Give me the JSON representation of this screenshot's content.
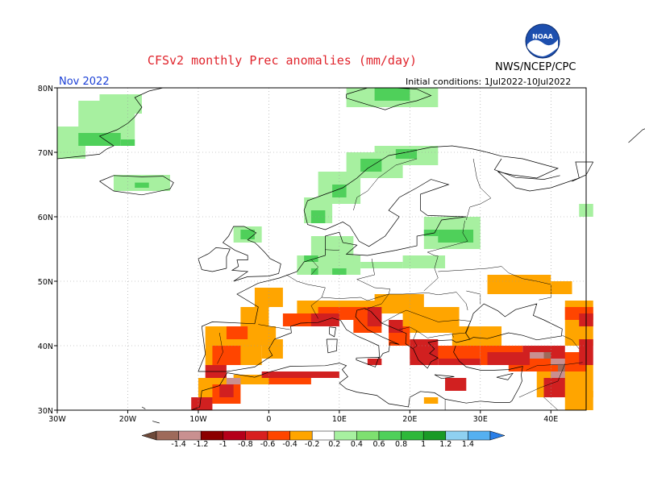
{
  "header": {
    "title": "CFSv2 monthly Prec anomalies (mm/day)",
    "agency": "NWS/NCEP/CPC",
    "month": "Nov 2022",
    "initial_conditions": "Initial conditions: 1Jul2022-10Jul2022",
    "logo_text": "NOAA"
  },
  "map": {
    "lon_range": [
      -30,
      45
    ],
    "lat_range": [
      30,
      80
    ],
    "lat_labels": [
      "30N",
      "40N",
      "50N",
      "60N",
      "70N",
      "80N"
    ],
    "lon_labels": [
      "30W",
      "20W",
      "10W",
      "0",
      "10E",
      "20E",
      "30E",
      "40E"
    ],
    "gridlines": "dotted",
    "regions": [
      {
        "id": "greenland-east",
        "color": "#a7f0a0",
        "cells": [
          [
            -30,
            69,
            -26,
            74
          ],
          [
            -27,
            72,
            -19,
            78
          ],
          [
            -24,
            76,
            -18,
            79
          ]
        ]
      },
      {
        "id": "greenland-coast",
        "color": "#4fd05a",
        "cells": [
          [
            -27,
            71,
            -21,
            73
          ],
          [
            -21,
            71,
            -19,
            72
          ]
        ]
      },
      {
        "id": "iceland",
        "color": "#a7f0a0",
        "cells": [
          [
            -22,
            64,
            -14,
            66.5
          ]
        ]
      },
      {
        "id": "iceland-dark",
        "color": "#4fd05a",
        "cells": [
          [
            -19,
            64.5,
            -17,
            65.3
          ]
        ]
      },
      {
        "id": "svalbard",
        "color": "#a7f0a0",
        "cells": [
          [
            11,
            77,
            24,
            80
          ]
        ]
      },
      {
        "id": "svalbard-dark",
        "color": "#4fd05a",
        "cells": [
          [
            15,
            78,
            20,
            80
          ]
        ]
      },
      {
        "id": "scandinavia-coast",
        "color": "#a7f0a0",
        "cells": [
          [
            5,
            59,
            9,
            63
          ],
          [
            7,
            62,
            13,
            67
          ],
          [
            11,
            66,
            19,
            70
          ],
          [
            15,
            68,
            24,
            71
          ]
        ]
      },
      {
        "id": "scandinavia-coast-dark",
        "color": "#4fd05a",
        "cells": [
          [
            6,
            59,
            8,
            61
          ],
          [
            9,
            63,
            11,
            65
          ],
          [
            13,
            67,
            16,
            69
          ],
          [
            18,
            69,
            21,
            70.5
          ]
        ]
      },
      {
        "id": "scotland",
        "color": "#a7f0a0",
        "cells": [
          [
            -5,
            56,
            -1,
            58.5
          ]
        ]
      },
      {
        "id": "scotland-dark",
        "color": "#4fd05a",
        "cells": [
          [
            -4,
            56.5,
            -2,
            58
          ]
        ]
      },
      {
        "id": "north-europe",
        "color": "#a7f0a0",
        "cells": [
          [
            4,
            51,
            13,
            54
          ],
          [
            6,
            53,
            12,
            57
          ],
          [
            13,
            52,
            19,
            53
          ],
          [
            19,
            52,
            25,
            54
          ],
          [
            22,
            55,
            30,
            60
          ],
          [
            24,
            57,
            28,
            58
          ]
        ]
      },
      {
        "id": "north-europe-dark",
        "color": "#4fd05a",
        "cells": [
          [
            5,
            53,
            7,
            54
          ],
          [
            6,
            51,
            7,
            52
          ],
          [
            9,
            51,
            11,
            52
          ],
          [
            24,
            56,
            29,
            58
          ],
          [
            22,
            57,
            24,
            58
          ]
        ]
      },
      {
        "id": "urals",
        "color": "#a7f0a0",
        "cells": [
          [
            44,
            60,
            46,
            62
          ]
        ]
      },
      {
        "id": "central-orange",
        "color": "#ffa500",
        "cells": [
          [
            -2,
            46,
            2,
            49
          ],
          [
            -4,
            43,
            0,
            46
          ],
          [
            4,
            45,
            20,
            47
          ],
          [
            15,
            46,
            22,
            48
          ],
          [
            19,
            42,
            27,
            46
          ],
          [
            26,
            40,
            33,
            43
          ],
          [
            31,
            48,
            40,
            51
          ],
          [
            40,
            48,
            43,
            50
          ],
          [
            42,
            40,
            46,
            47
          ]
        ]
      },
      {
        "id": "iberia-orange",
        "color": "#ffa500",
        "cells": [
          [
            -9,
            37,
            -1,
            43
          ],
          [
            -5,
            40,
            1,
            43
          ],
          [
            -1,
            38,
            2,
            41
          ]
        ]
      },
      {
        "id": "mideast-orange",
        "color": "#ffa500",
        "cells": [
          [
            38,
            32,
            46,
            37
          ],
          [
            42,
            30,
            46,
            33
          ]
        ]
      },
      {
        "id": "north-africa-orange",
        "color": "#ffa500",
        "cells": [
          [
            -10,
            31,
            -5,
            35
          ],
          [
            -5,
            34,
            2,
            35.5
          ],
          [
            22,
            31,
            24,
            32
          ]
        ]
      },
      {
        "id": "central-red",
        "color": "#ff4500",
        "cells": [
          [
            2,
            43,
            8,
            45
          ],
          [
            7,
            44,
            14,
            46
          ],
          [
            12,
            42,
            16,
            45
          ],
          [
            17,
            40,
            20,
            43
          ],
          [
            20,
            38,
            30,
            40
          ],
          [
            30,
            37,
            36,
            40
          ],
          [
            -8,
            37,
            -4,
            40
          ],
          [
            -8,
            31,
            -4,
            34
          ],
          [
            -6,
            41,
            -3,
            43
          ],
          [
            0,
            34,
            6,
            35
          ],
          [
            34,
            36,
            40,
            38
          ],
          [
            40,
            36,
            45,
            39
          ],
          [
            42,
            44,
            46,
            46
          ]
        ]
      },
      {
        "id": "central-darkred",
        "color": "#d12020",
        "cells": [
          [
            6,
            43,
            10,
            45
          ],
          [
            14,
            43,
            16,
            46
          ],
          [
            17,
            42,
            19,
            44
          ],
          [
            20,
            37,
            24,
            41
          ],
          [
            24,
            37,
            30,
            38
          ],
          [
            31,
            37,
            37,
            39
          ],
          [
            36,
            38,
            42,
            40
          ],
          [
            44,
            37,
            46,
            41
          ],
          [
            -9,
            35,
            -6,
            37
          ],
          [
            -1,
            35,
            10,
            36
          ],
          [
            -7,
            32,
            -5,
            34
          ],
          [
            -11,
            30,
            -8,
            32
          ],
          [
            14,
            37,
            16,
            38
          ],
          [
            25,
            33,
            28,
            35
          ],
          [
            39,
            32,
            42,
            35
          ],
          [
            44,
            43,
            46,
            45
          ]
        ]
      },
      {
        "id": "pink-patches",
        "color": "#c99090",
        "cells": [
          [
            -6,
            34,
            -4,
            35
          ],
          [
            37,
            38,
            39,
            39
          ],
          [
            40,
            37,
            42,
            38
          ],
          [
            40,
            35,
            42,
            36
          ]
        ]
      },
      {
        "id": "brown-patches",
        "color": "#9e6a5a",
        "cells": [
          [
            39,
            38,
            40,
            39
          ],
          [
            41,
            36,
            42,
            37
          ]
        ]
      }
    ]
  },
  "colorbar": {
    "ticks": [
      "-1.4",
      "-1.2",
      "-1",
      "-0.8",
      "-0.6",
      "-0.4",
      "-0.2",
      "0.2",
      "0.4",
      "0.6",
      "0.8",
      "1",
      "1.2",
      "1.4"
    ],
    "colors": [
      "#6e4a3a",
      "#9e6a5a",
      "#c99090",
      "#8b0000",
      "#b5001a",
      "#d82020",
      "#ff4500",
      "#ffa500",
      "#ffffff",
      "#a7f0a0",
      "#7ee070",
      "#4fd05a",
      "#2eb83a",
      "#199a26",
      "#8fd0f0",
      "#55b0f0",
      "#2a7fe8"
    ]
  }
}
